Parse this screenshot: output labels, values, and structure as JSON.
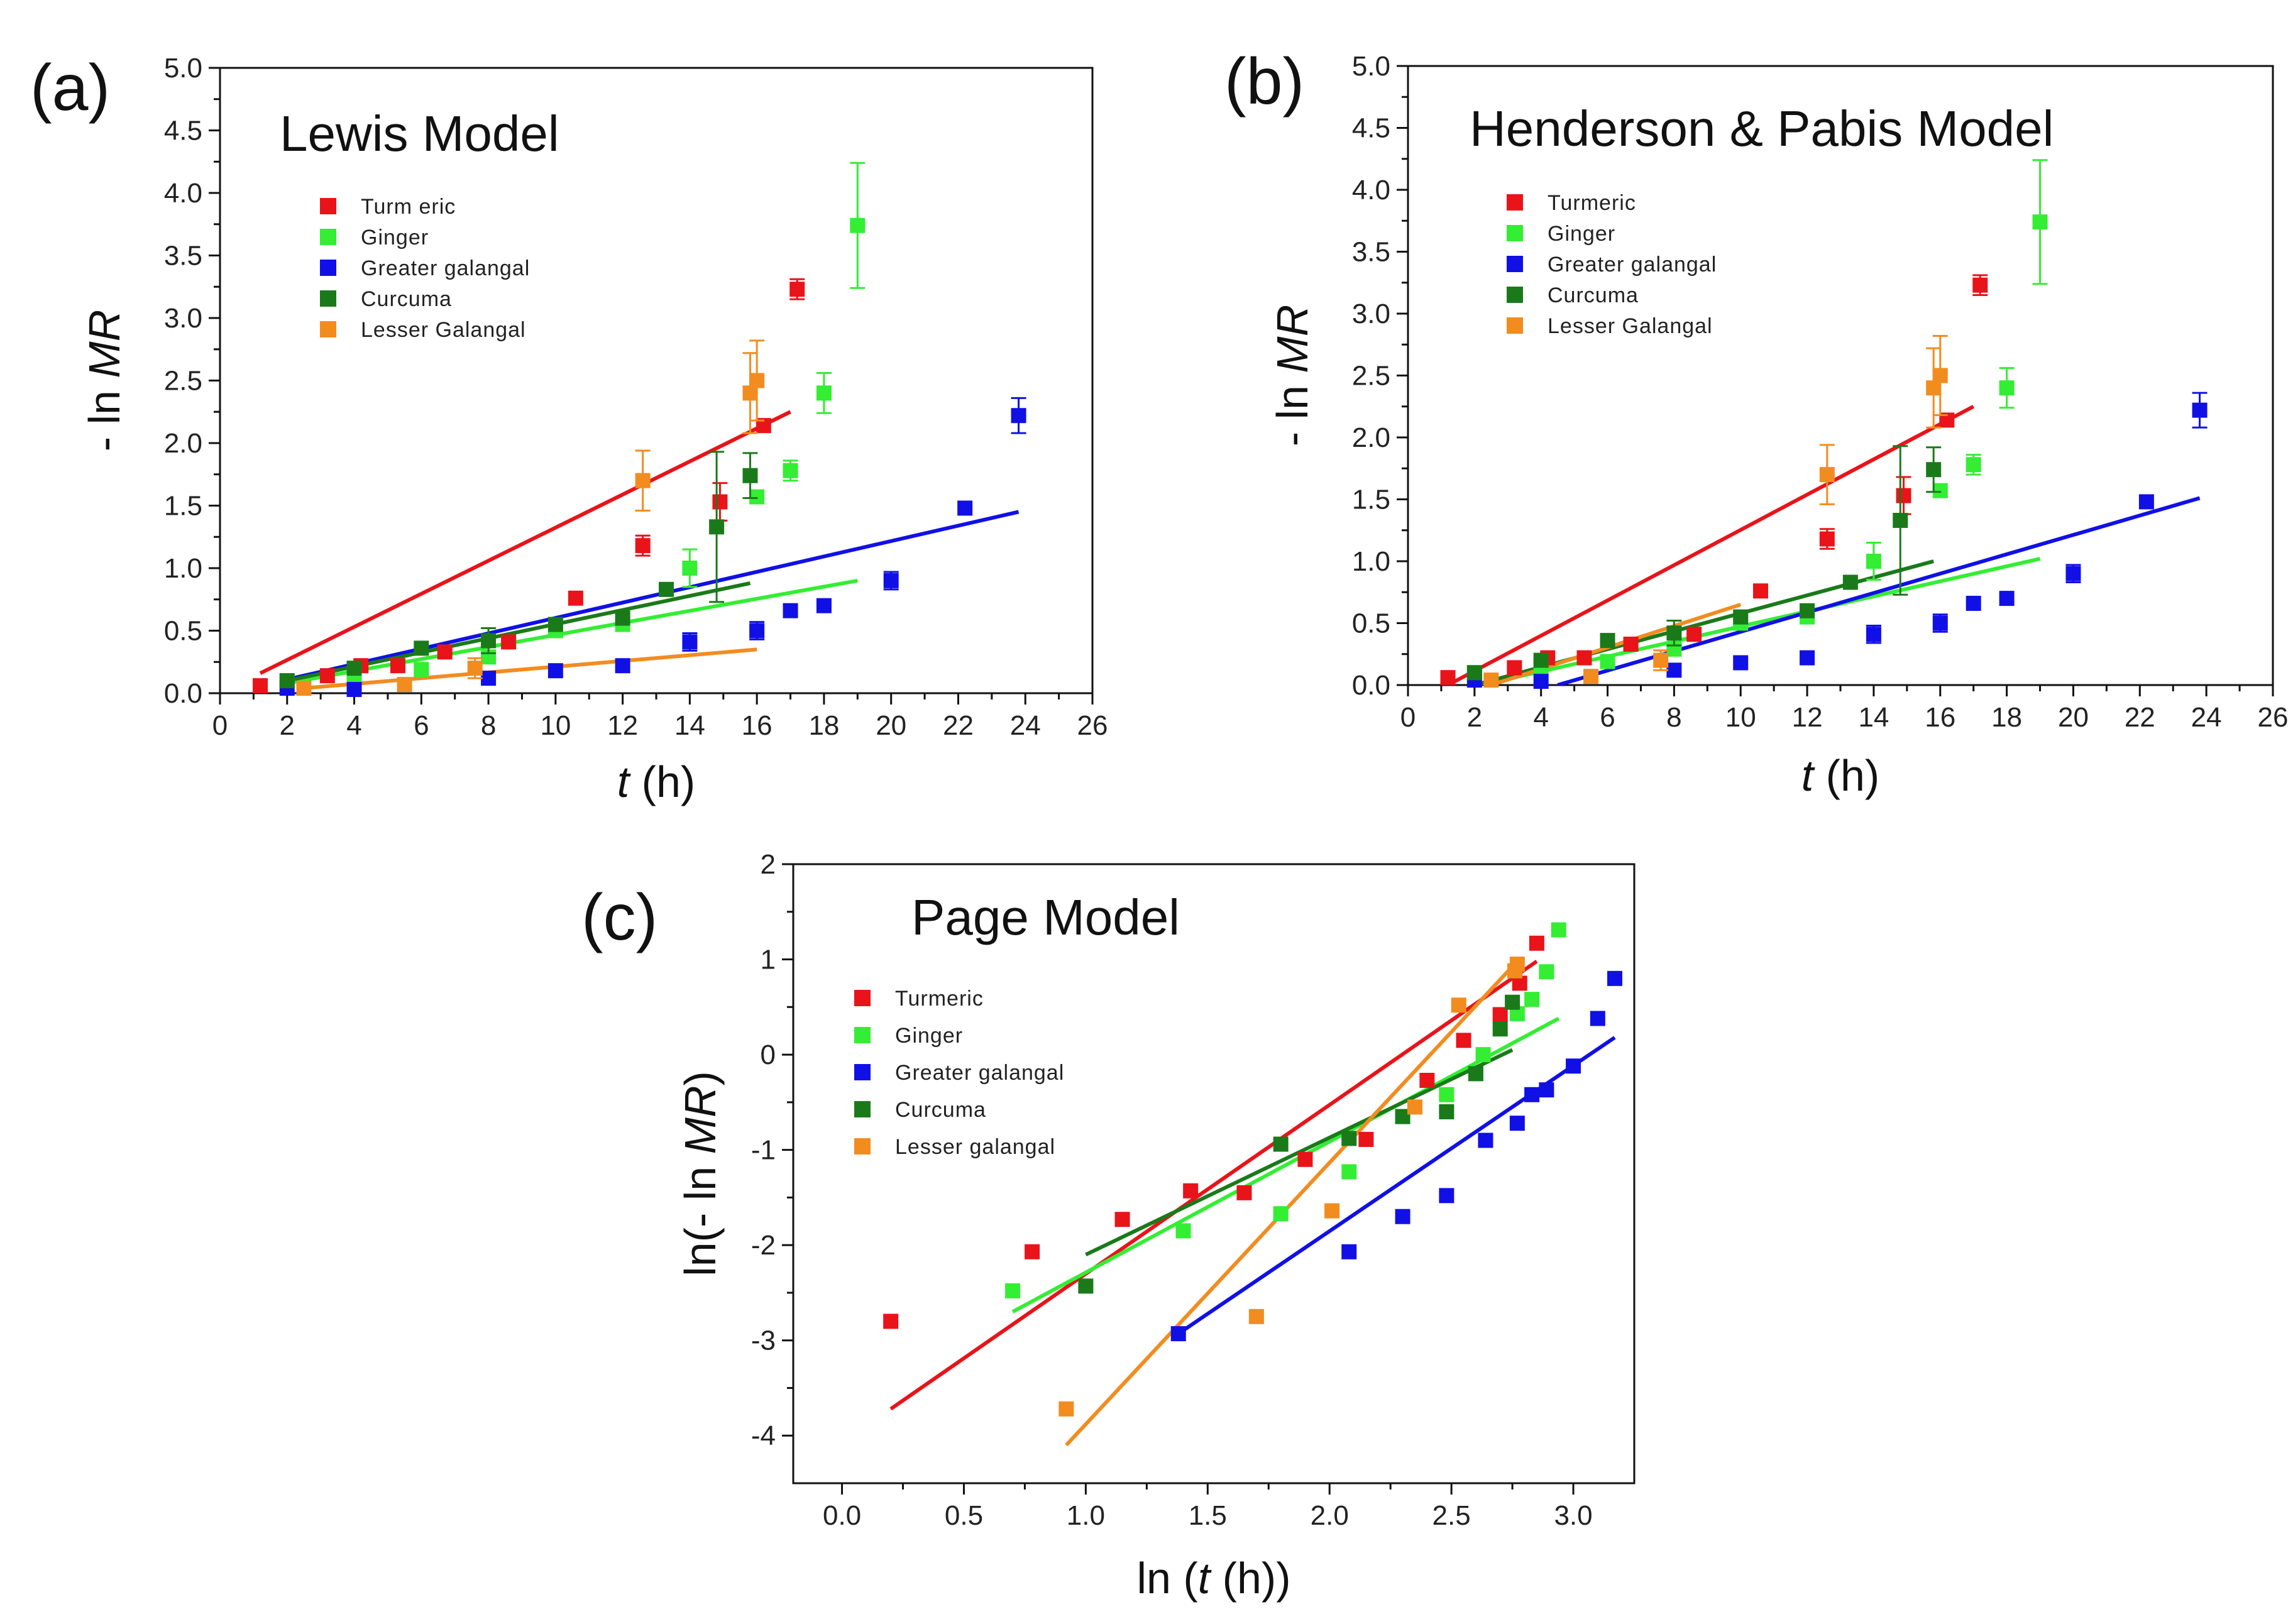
{
  "colors": {
    "Turmeric": "#e8141a",
    "Ginger": "#33ee33",
    "Greater galangal": "#1010e6",
    "Curcuma": "#1a7a1a",
    "Lesser Galangal": "#f28c1f"
  },
  "chart_data": [
    {
      "id": "a",
      "type": "scatter",
      "panel_label": "(a)",
      "title": "Lewis Model",
      "xlabel_italic": "t",
      "xlabel_rest": " (h)",
      "ylabel_prefix": "- ln ",
      "ylabel_italic": "MR",
      "ylabel_suffix": "",
      "xlim": [
        0,
        26
      ],
      "ylim": [
        0,
        5
      ],
      "xticks": [
        0,
        2,
        4,
        6,
        8,
        10,
        12,
        14,
        16,
        18,
        20,
        22,
        24,
        26
      ],
      "yticks": [
        0.0,
        0.5,
        1.0,
        1.5,
        2.0,
        2.5,
        3.0,
        3.5,
        4.0,
        4.5,
        5.0
      ],
      "ytick_decimals": 1,
      "xtick_decimals": 0,
      "legend_labels": [
        "Turm eric",
        "Ginger",
        "Greater galangal",
        "Curcuma",
        "Lesser Galangal"
      ],
      "series": [
        {
          "name": "Turmeric",
          "x": [
            1.2,
            3.2,
            4.2,
            5.3,
            6.7,
            8.6,
            10.6,
            12.6,
            14.9,
            16.2,
            17.2
          ],
          "y": [
            0.06,
            0.14,
            0.22,
            0.22,
            0.33,
            0.41,
            0.76,
            1.18,
            1.53,
            2.14,
            3.23
          ],
          "err": [
            0,
            0,
            0,
            0,
            0,
            0,
            0,
            0.08,
            0.15,
            0,
            0.08
          ],
          "fit": [
            [
              1.2,
              0.16
            ],
            [
              17.0,
              2.25
            ]
          ]
        },
        {
          "name": "Ginger",
          "x": [
            2.0,
            4.0,
            6.0,
            8.0,
            10.0,
            12.0,
            14.0,
            16.0,
            17.0,
            18.0,
            19.0
          ],
          "y": [
            0.1,
            0.15,
            0.19,
            0.29,
            0.5,
            0.55,
            1.0,
            1.57,
            1.78,
            2.4,
            3.74
          ],
          "err": [
            0,
            0,
            0,
            0,
            0,
            0,
            0.15,
            0,
            0.08,
            0.16,
            0.5
          ],
          "fit": [
            [
              2.0,
              0.08
            ],
            [
              19.0,
              0.9
            ]
          ]
        },
        {
          "name": "Greater galangal",
          "x": [
            2.0,
            4.0,
            8.0,
            10.0,
            12.0,
            14.0,
            16.0,
            17.0,
            18.0,
            20.0,
            22.2,
            23.8
          ],
          "y": [
            0.04,
            0.03,
            0.12,
            0.18,
            0.22,
            0.41,
            0.5,
            0.66,
            0.7,
            0.9,
            1.48,
            2.22
          ],
          "err": [
            0,
            0,
            0,
            0,
            0,
            0.07,
            0.07,
            0,
            0,
            0.07,
            0,
            0.14
          ],
          "fit": [
            [
              2.0,
              0.11
            ],
            [
              23.8,
              1.45
            ]
          ]
        },
        {
          "name": "Curcuma",
          "x": [
            2.0,
            4.0,
            6.0,
            8.0,
            10.0,
            12.0,
            13.3,
            14.8,
            15.8
          ],
          "y": [
            0.1,
            0.2,
            0.36,
            0.42,
            0.55,
            0.6,
            0.83,
            1.33,
            1.74
          ],
          "err": [
            0,
            0,
            0,
            0.1,
            0,
            0,
            0,
            0.6,
            0.18
          ],
          "fit": [
            [
              2.0,
              0.1
            ],
            [
              15.8,
              0.88
            ]
          ]
        },
        {
          "name": "Lesser Galangal",
          "x": [
            2.5,
            5.5,
            7.6,
            12.6,
            15.8,
            16.0
          ],
          "y": [
            0.04,
            0.07,
            0.2,
            1.7,
            2.4,
            2.5
          ],
          "err": [
            0,
            0,
            0.08,
            0.24,
            0.32,
            0.32
          ],
          "fit": [
            [
              2.5,
              0.04
            ],
            [
              16.0,
              0.35
            ]
          ]
        }
      ]
    },
    {
      "id": "b",
      "type": "scatter",
      "panel_label": "(b)",
      "title": "Henderson & Pabis Model",
      "xlabel_italic": "t",
      "xlabel_rest": " (h)",
      "ylabel_prefix": "- ln ",
      "ylabel_italic": "MR",
      "ylabel_suffix": "",
      "xlim": [
        0,
        26
      ],
      "ylim": [
        0,
        5
      ],
      "xticks": [
        0,
        2,
        4,
        6,
        8,
        10,
        12,
        14,
        16,
        18,
        20,
        22,
        24,
        26
      ],
      "yticks": [
        0.0,
        0.5,
        1.0,
        1.5,
        2.0,
        2.5,
        3.0,
        3.5,
        4.0,
        4.5,
        5.0
      ],
      "ytick_decimals": 1,
      "xtick_decimals": 0,
      "legend_labels": [
        "Turmeric",
        "Ginger",
        "Greater galangal",
        "Curcuma",
        "Lesser Galangal"
      ],
      "series": [
        {
          "name": "Turmeric",
          "x": [
            1.2,
            3.2,
            4.2,
            5.3,
            6.7,
            8.6,
            10.6,
            12.6,
            14.9,
            16.2,
            17.2
          ],
          "y": [
            0.06,
            0.14,
            0.22,
            0.22,
            0.33,
            0.41,
            0.76,
            1.18,
            1.53,
            2.14,
            3.23
          ],
          "err": [
            0,
            0,
            0,
            0,
            0,
            0,
            0,
            0.08,
            0.15,
            0,
            0.08
          ],
          "fit": [
            [
              1.2,
              0.0
            ],
            [
              17.0,
              2.25
            ]
          ]
        },
        {
          "name": "Ginger",
          "x": [
            2.0,
            4.0,
            6.0,
            8.0,
            10.0,
            12.0,
            14.0,
            16.0,
            17.0,
            18.0,
            19.0
          ],
          "y": [
            0.1,
            0.15,
            0.19,
            0.29,
            0.5,
            0.55,
            1.0,
            1.57,
            1.78,
            2.4,
            3.74
          ],
          "err": [
            0,
            0,
            0,
            0,
            0,
            0,
            0.15,
            0,
            0.08,
            0.16,
            0.5
          ],
          "fit": [
            [
              2.2,
              0.0
            ],
            [
              19.0,
              1.02
            ]
          ]
        },
        {
          "name": "Greater galangal",
          "x": [
            2.0,
            4.0,
            8.0,
            10.0,
            12.0,
            14.0,
            16.0,
            17.0,
            18.0,
            20.0,
            22.2,
            23.8
          ],
          "y": [
            0.04,
            0.03,
            0.12,
            0.18,
            0.22,
            0.41,
            0.5,
            0.66,
            0.7,
            0.9,
            1.48,
            2.22
          ],
          "err": [
            0,
            0,
            0,
            0,
            0,
            0.07,
            0.07,
            0,
            0,
            0.07,
            0,
            0.14
          ],
          "fit": [
            [
              4.5,
              0.0
            ],
            [
              23.8,
              1.51
            ]
          ]
        },
        {
          "name": "Curcuma",
          "x": [
            2.0,
            4.0,
            6.0,
            8.0,
            10.0,
            12.0,
            13.3,
            14.8,
            15.8
          ],
          "y": [
            0.1,
            0.2,
            0.36,
            0.42,
            0.55,
            0.6,
            0.83,
            1.33,
            1.74
          ],
          "err": [
            0,
            0,
            0,
            0.1,
            0,
            0,
            0,
            0.6,
            0.18
          ],
          "fit": [
            [
              2.0,
              0.0
            ],
            [
              15.8,
              1.0
            ]
          ]
        },
        {
          "name": "Lesser Galangal",
          "x": [
            2.5,
            5.5,
            7.6,
            12.6,
            15.8,
            16.0
          ],
          "y": [
            0.04,
            0.07,
            0.2,
            1.7,
            2.4,
            2.5
          ],
          "err": [
            0,
            0,
            0.08,
            0.24,
            0.32,
            0.32
          ],
          "fit": [
            [
              2.5,
              0.0
            ],
            [
              10.0,
              0.65
            ]
          ]
        }
      ]
    },
    {
      "id": "c",
      "type": "scatter",
      "panel_label": "(c)",
      "title": "Page Model",
      "xlabel_italic": "t",
      "xlabel_rest": " (h))",
      "xlabel_prefix": "ln (",
      "ylabel_prefix": "ln(- ln ",
      "ylabel_italic": "MR",
      "ylabel_suffix": ")",
      "xlim": [
        -0.2,
        3.25
      ],
      "ylim": [
        -4.5,
        2
      ],
      "xticks": [
        0.0,
        0.5,
        1.0,
        1.5,
        2.0,
        2.5,
        3.0
      ],
      "yticks": [
        -4,
        -3,
        -2,
        -1,
        0,
        1,
        2
      ],
      "ytick_decimals": 0,
      "xtick_decimals": 1,
      "legend_labels": [
        "Turmeric",
        "Ginger",
        "Greater galangal",
        "Curcuma",
        "Lesser galangal"
      ],
      "series": [
        {
          "name": "Turmeric",
          "x": [
            0.2,
            0.78,
            1.15,
            1.43,
            1.65,
            1.9,
            2.15,
            2.4,
            2.55,
            2.7,
            2.78,
            2.85
          ],
          "y": [
            -2.8,
            -2.07,
            -1.73,
            -1.43,
            -1.45,
            -1.1,
            -0.89,
            -0.27,
            0.15,
            0.42,
            0.75,
            1.17
          ],
          "err": [
            0,
            0,
            0,
            0,
            0,
            0,
            0,
            0,
            0,
            0,
            0,
            0
          ],
          "fit": [
            [
              0.2,
              -3.72
            ],
            [
              2.85,
              0.98
            ]
          ]
        },
        {
          "name": "Ginger",
          "x": [
            0.7,
            1.4,
            1.8,
            2.08,
            2.3,
            2.48,
            2.63,
            2.77,
            2.83,
            2.89,
            2.94
          ],
          "y": [
            -2.48,
            -1.85,
            -1.67,
            -1.23,
            -0.65,
            -0.42,
            0.0,
            0.43,
            0.58,
            0.87,
            1.31
          ],
          "err": [
            0,
            0,
            0,
            0,
            0,
            0,
            0,
            0,
            0,
            0,
            0
          ],
          "fit": [
            [
              0.7,
              -2.7
            ],
            [
              2.94,
              0.38
            ]
          ]
        },
        {
          "name": "Greater galangal",
          "x": [
            1.38,
            2.08,
            2.3,
            2.48,
            2.64,
            2.77,
            2.83,
            2.89,
            3.0,
            3.1,
            3.17
          ],
          "y": [
            -2.93,
            -2.07,
            -1.7,
            -1.48,
            -0.9,
            -0.72,
            -0.42,
            -0.37,
            -0.12,
            0.38,
            0.8
          ],
          "err": [
            0,
            0,
            0,
            0,
            0,
            0,
            0,
            0,
            0,
            0,
            0
          ],
          "fit": [
            [
              1.38,
              -2.93
            ],
            [
              3.17,
              0.18
            ]
          ]
        },
        {
          "name": "Curcuma",
          "x": [
            1.0,
            1.8,
            2.08,
            2.3,
            2.48,
            2.6,
            2.7,
            2.75
          ],
          "y": [
            -2.43,
            -0.94,
            -0.88,
            -0.65,
            -0.6,
            -0.2,
            0.27,
            0.55
          ],
          "err": [
            0,
            0,
            0,
            0,
            0,
            0,
            0,
            0
          ],
          "fit": [
            [
              1.0,
              -2.1
            ],
            [
              2.75,
              0.05
            ]
          ]
        },
        {
          "name": "Lesser Galangal",
          "x": [
            0.92,
            1.7,
            2.01,
            2.35,
            2.53,
            2.76,
            2.77
          ],
          "y": [
            -3.72,
            -2.75,
            -1.64,
            -0.55,
            0.52,
            0.88,
            0.95
          ],
          "err": [
            0,
            0,
            0,
            0,
            0,
            0,
            0
          ],
          "fit": [
            [
              0.92,
              -4.1
            ],
            [
              2.77,
              0.98
            ]
          ]
        }
      ]
    }
  ]
}
